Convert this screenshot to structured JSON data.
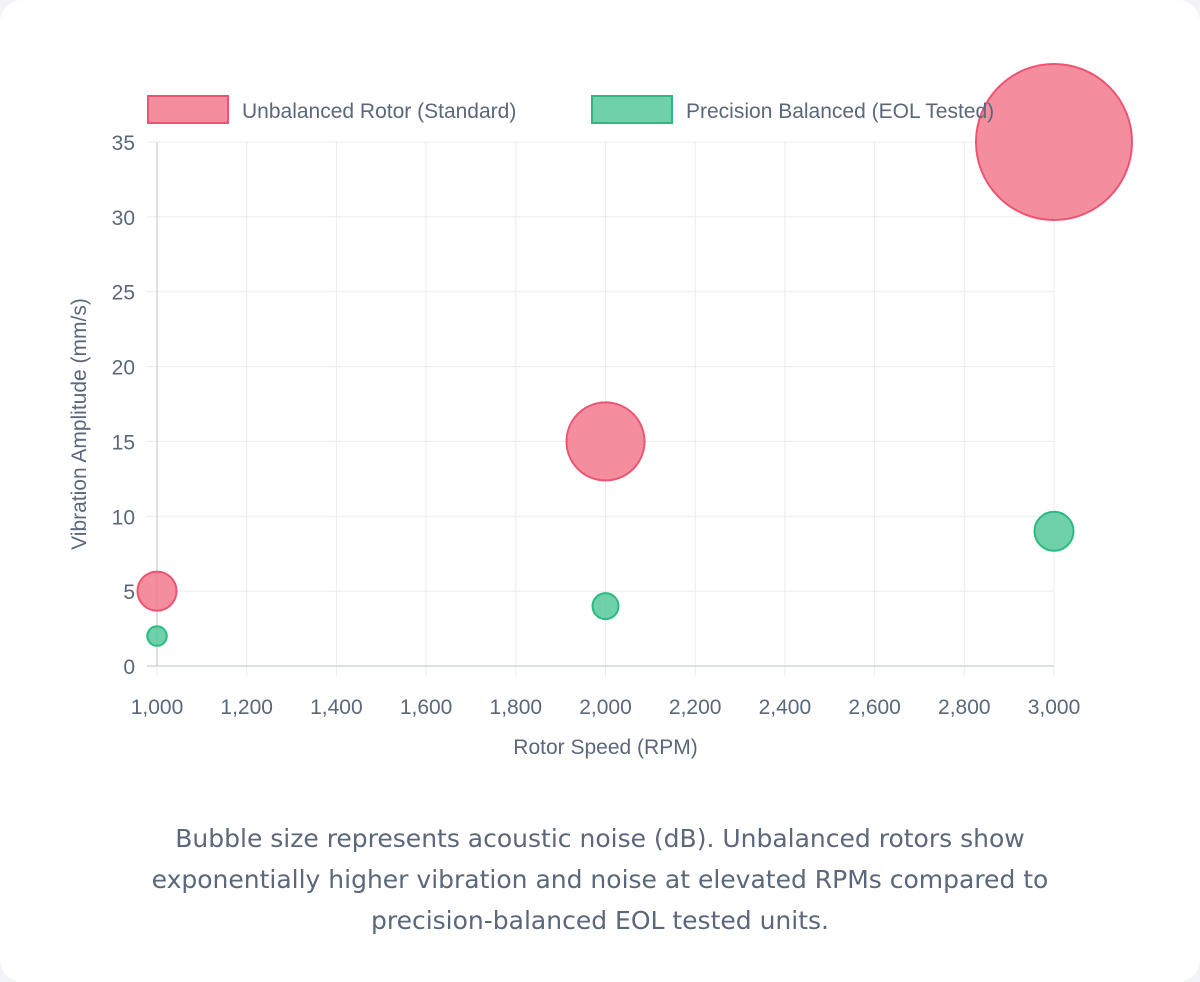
{
  "chart_data": {
    "type": "bubble",
    "xlabel": "Rotor Speed (RPM)",
    "ylabel": "Vibration Amplitude (mm/s)",
    "xlim": [
      1000,
      3000
    ],
    "ylim": [
      0,
      35
    ],
    "x_ticks": [
      1000,
      1200,
      1400,
      1600,
      1800,
      2000,
      2200,
      2400,
      2600,
      2800,
      3000
    ],
    "x_tick_labels": [
      "1,000",
      "1,200",
      "1,400",
      "1,600",
      "1,800",
      "2,000",
      "2,200",
      "2,400",
      "2,600",
      "2,800",
      "3,000"
    ],
    "y_ticks": [
      0,
      5,
      10,
      15,
      20,
      25,
      30,
      35
    ],
    "y_tick_labels": [
      "0",
      "5",
      "10",
      "15",
      "20",
      "25",
      "30",
      "35"
    ],
    "grid": true,
    "legend_position": "top",
    "series": [
      {
        "name": "Unbalanced Rotor (Standard)",
        "fill": "#f27a8e",
        "stroke": "#ee5472",
        "points": [
          {
            "x": 1000,
            "y": 5,
            "noise_db": 3
          },
          {
            "x": 2000,
            "y": 15,
            "noise_db": 6
          },
          {
            "x": 3000,
            "y": 35,
            "noise_db": 12
          }
        ]
      },
      {
        "name": "Precision Balanced (EOL Tested)",
        "fill": "#55c99b",
        "stroke": "#2dba82",
        "points": [
          {
            "x": 1000,
            "y": 2,
            "noise_db": 1.5
          },
          {
            "x": 2000,
            "y": 4,
            "noise_db": 2
          },
          {
            "x": 3000,
            "y": 9,
            "noise_db": 3
          }
        ]
      }
    ]
  },
  "caption": "Bubble size represents acoustic noise (dB). Unbalanced rotors show exponentially higher vibration and noise at elevated RPMs compared to precision-balanced EOL tested units."
}
